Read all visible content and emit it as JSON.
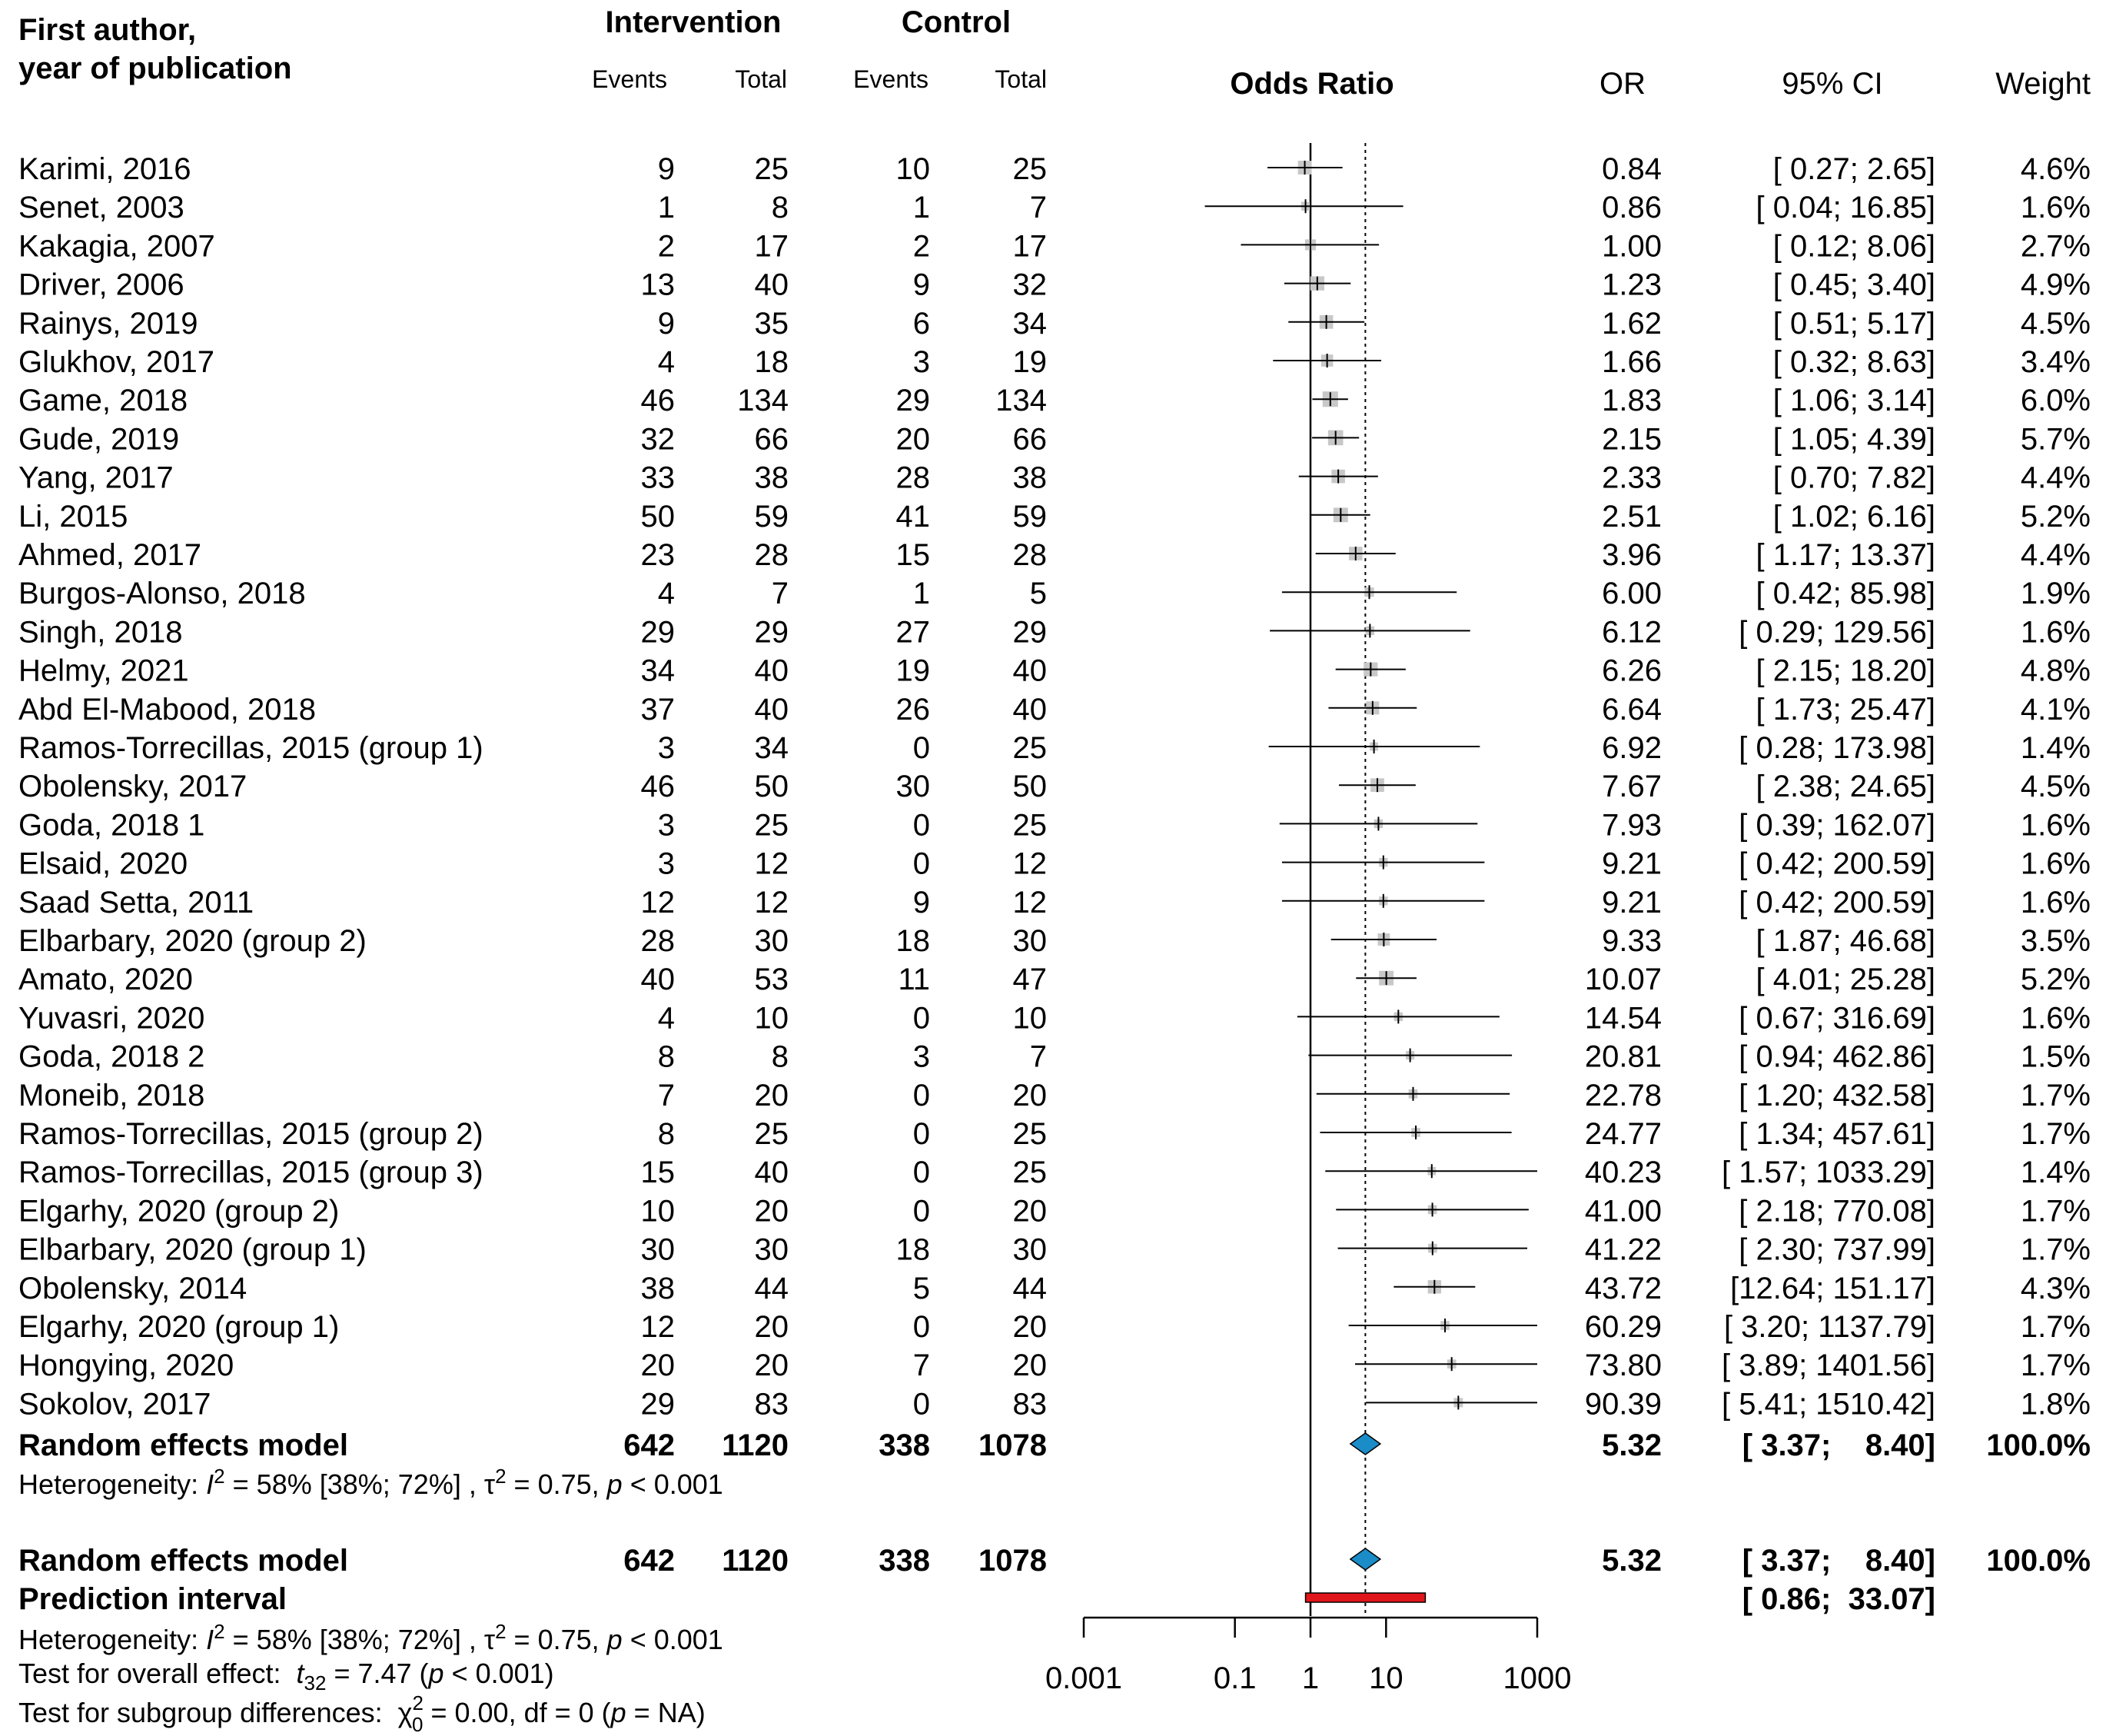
{
  "chart_data": {
    "type": "forest",
    "title": "Odds Ratio",
    "headers": {
      "study": [
        "First author,",
        "year of publication"
      ],
      "intervention": "Intervention",
      "control": "Control",
      "events": "Events",
      "total": "Total",
      "or": "OR",
      "ci": "95% CI",
      "weight": "Weight"
    },
    "x_scale": "log10",
    "xlim": [
      0.001,
      1000
    ],
    "ticks": [
      {
        "value": 0.001,
        "label": "0.001"
      },
      {
        "value": 0.1,
        "label": "0.1"
      },
      {
        "value": 1,
        "label": "1"
      },
      {
        "value": 10,
        "label": "10"
      },
      {
        "value": 1000,
        "label": "1000"
      }
    ],
    "null_line": 1,
    "studies": [
      {
        "name": "Karimi, 2016",
        "e1": "9",
        "n1": "25",
        "e2": "10",
        "n2": "25",
        "or": 0.84,
        "lo": 0.27,
        "hi": 2.65,
        "or_text": "0.84",
        "ci_text": "[ 0.27;    2.65]",
        "w_text": "4.6%",
        "w": 4.6
      },
      {
        "name": "Senet, 2003",
        "e1": "1",
        "n1": "8",
        "e2": "1",
        "n2": "7",
        "or": 0.86,
        "lo": 0.04,
        "hi": 16.85,
        "or_text": "0.86",
        "ci_text": "[ 0.04;   16.85]",
        "w_text": "1.6%",
        "w": 1.6
      },
      {
        "name": "Kakagia, 2007",
        "e1": "2",
        "n1": "17",
        "e2": "2",
        "n2": "17",
        "or": 1.0,
        "lo": 0.12,
        "hi": 8.06,
        "or_text": "1.00",
        "ci_text": "[ 0.12;    8.06]",
        "w_text": "2.7%",
        "w": 2.7
      },
      {
        "name": "Driver, 2006",
        "e1": "13",
        "n1": "40",
        "e2": "9",
        "n2": "32",
        "or": 1.23,
        "lo": 0.45,
        "hi": 3.4,
        "or_text": "1.23",
        "ci_text": "[ 0.45;    3.40]",
        "w_text": "4.9%",
        "w": 4.9
      },
      {
        "name": "Rainys, 2019",
        "e1": "9",
        "n1": "35",
        "e2": "6",
        "n2": "34",
        "or": 1.62,
        "lo": 0.51,
        "hi": 5.17,
        "or_text": "1.62",
        "ci_text": "[ 0.51;    5.17]",
        "w_text": "4.5%",
        "w": 4.5
      },
      {
        "name": "Glukhov, 2017",
        "e1": "4",
        "n1": "18",
        "e2": "3",
        "n2": "19",
        "or": 1.66,
        "lo": 0.32,
        "hi": 8.63,
        "or_text": "1.66",
        "ci_text": "[ 0.32;    8.63]",
        "w_text": "3.4%",
        "w": 3.4
      },
      {
        "name": "Game, 2018",
        "e1": "46",
        "n1": "134",
        "e2": "29",
        "n2": "134",
        "or": 1.83,
        "lo": 1.06,
        "hi": 3.14,
        "or_text": "1.83",
        "ci_text": "[ 1.06;    3.14]",
        "w_text": "6.0%",
        "w": 6.0
      },
      {
        "name": "Gude, 2019",
        "e1": "32",
        "n1": "66",
        "e2": "20",
        "n2": "66",
        "or": 2.15,
        "lo": 1.05,
        "hi": 4.39,
        "or_text": "2.15",
        "ci_text": "[ 1.05;    4.39]",
        "w_text": "5.7%",
        "w": 5.7
      },
      {
        "name": "Yang, 2017",
        "e1": "33",
        "n1": "38",
        "e2": "28",
        "n2": "38",
        "or": 2.33,
        "lo": 0.7,
        "hi": 7.82,
        "or_text": "2.33",
        "ci_text": "[ 0.70;    7.82]",
        "w_text": "4.4%",
        "w": 4.4
      },
      {
        "name": "Li, 2015",
        "e1": "50",
        "n1": "59",
        "e2": "41",
        "n2": "59",
        "or": 2.51,
        "lo": 1.02,
        "hi": 6.16,
        "or_text": "2.51",
        "ci_text": "[ 1.02;    6.16]",
        "w_text": "5.2%",
        "w": 5.2
      },
      {
        "name": "Ahmed, 2017",
        "e1": "23",
        "n1": "28",
        "e2": "15",
        "n2": "28",
        "or": 3.96,
        "lo": 1.17,
        "hi": 13.37,
        "or_text": "3.96",
        "ci_text": "[ 1.17;   13.37]",
        "w_text": "4.4%",
        "w": 4.4
      },
      {
        "name": "Burgos-Alonso, 2018",
        "e1": "4",
        "n1": "7",
        "e2": "1",
        "n2": "5",
        "or": 6.0,
        "lo": 0.42,
        "hi": 85.98,
        "or_text": "6.00",
        "ci_text": "[ 0.42;   85.98]",
        "w_text": "1.9%",
        "w": 1.9
      },
      {
        "name": "Singh, 2018",
        "e1": "29",
        "n1": "29",
        "e2": "27",
        "n2": "29",
        "or": 6.12,
        "lo": 0.29,
        "hi": 129.56,
        "or_text": "6.12",
        "ci_text": "[ 0.29;  129.56]",
        "w_text": "1.6%",
        "w": 1.6
      },
      {
        "name": "Helmy, 2021",
        "e1": "34",
        "n1": "40",
        "e2": "19",
        "n2": "40",
        "or": 6.26,
        "lo": 2.15,
        "hi": 18.2,
        "or_text": "6.26",
        "ci_text": "[ 2.15;   18.20]",
        "w_text": "4.8%",
        "w": 4.8
      },
      {
        "name": "Abd El-Mabood, 2018",
        "e1": "37",
        "n1": "40",
        "e2": "26",
        "n2": "40",
        "or": 6.64,
        "lo": 1.73,
        "hi": 25.47,
        "or_text": "6.64",
        "ci_text": "[ 1.73;   25.47]",
        "w_text": "4.1%",
        "w": 4.1
      },
      {
        "name": "Ramos-Torrecillas, 2015 (group 1)",
        "e1": "3",
        "n1": "34",
        "e2": "0",
        "n2": "25",
        "or": 6.92,
        "lo": 0.28,
        "hi": 173.98,
        "or_text": "6.92",
        "ci_text": "[ 0.28;  173.98]",
        "w_text": "1.4%",
        "w": 1.4
      },
      {
        "name": "Obolensky, 2017",
        "e1": "46",
        "n1": "50",
        "e2": "30",
        "n2": "50",
        "or": 7.67,
        "lo": 2.38,
        "hi": 24.65,
        "or_text": "7.67",
        "ci_text": "[ 2.38;   24.65]",
        "w_text": "4.5%",
        "w": 4.5
      },
      {
        "name": "Goda, 2018 1",
        "e1": "3",
        "n1": "25",
        "e2": "0",
        "n2": "25",
        "or": 7.93,
        "lo": 0.39,
        "hi": 162.07,
        "or_text": "7.93",
        "ci_text": "[ 0.39;  162.07]",
        "w_text": "1.6%",
        "w": 1.6
      },
      {
        "name": "Elsaid, 2020",
        "e1": "3",
        "n1": "12",
        "e2": "0",
        "n2": "12",
        "or": 9.21,
        "lo": 0.42,
        "hi": 200.59,
        "or_text": "9.21",
        "ci_text": "[ 0.42;  200.59]",
        "w_text": "1.6%",
        "w": 1.6
      },
      {
        "name": "Saad Setta, 2011",
        "e1": "12",
        "n1": "12",
        "e2": "9",
        "n2": "12",
        "or": 9.21,
        "lo": 0.42,
        "hi": 200.59,
        "or_text": "9.21",
        "ci_text": "[ 0.42;  200.59]",
        "w_text": "1.6%",
        "w": 1.6
      },
      {
        "name": "Elbarbary, 2020 (group 2)",
        "e1": "28",
        "n1": "30",
        "e2": "18",
        "n2": "30",
        "or": 9.33,
        "lo": 1.87,
        "hi": 46.68,
        "or_text": "9.33",
        "ci_text": "[ 1.87;   46.68]",
        "w_text": "3.5%",
        "w": 3.5
      },
      {
        "name": "Amato, 2020",
        "e1": "40",
        "n1": "53",
        "e2": "11",
        "n2": "47",
        "or": 10.07,
        "lo": 4.01,
        "hi": 25.28,
        "or_text": "10.07",
        "ci_text": "[ 4.01;   25.28]",
        "w_text": "5.2%",
        "w": 5.2
      },
      {
        "name": "Yuvasri, 2020",
        "e1": "4",
        "n1": "10",
        "e2": "0",
        "n2": "10",
        "or": 14.54,
        "lo": 0.67,
        "hi": 316.69,
        "or_text": "14.54",
        "ci_text": "[ 0.67;  316.69]",
        "w_text": "1.6%",
        "w": 1.6
      },
      {
        "name": "Goda, 2018 2",
        "e1": "8",
        "n1": "8",
        "e2": "3",
        "n2": "7",
        "or": 20.81,
        "lo": 0.94,
        "hi": 462.86,
        "or_text": "20.81",
        "ci_text": "[ 0.94;  462.86]",
        "w_text": "1.5%",
        "w": 1.5
      },
      {
        "name": "Moneib, 2018",
        "e1": "7",
        "n1": "20",
        "e2": "0",
        "n2": "20",
        "or": 22.78,
        "lo": 1.2,
        "hi": 432.58,
        "or_text": "22.78",
        "ci_text": "[ 1.20;  432.58]",
        "w_text": "1.7%",
        "w": 1.7
      },
      {
        "name": "Ramos-Torrecillas, 2015 (group 2)",
        "e1": "8",
        "n1": "25",
        "e2": "0",
        "n2": "25",
        "or": 24.77,
        "lo": 1.34,
        "hi": 457.61,
        "or_text": "24.77",
        "ci_text": "[ 1.34;  457.61]",
        "w_text": "1.7%",
        "w": 1.7
      },
      {
        "name": "Ramos-Torrecillas, 2015 (group 3)",
        "e1": "15",
        "n1": "40",
        "e2": "0",
        "n2": "25",
        "or": 40.23,
        "lo": 1.57,
        "hi": 1033.29,
        "or_text": "40.23",
        "ci_text": "[ 1.57; 1033.29]",
        "w_text": "1.4%",
        "w": 1.4
      },
      {
        "name": "Elgarhy, 2020 (group 2)",
        "e1": "10",
        "n1": "20",
        "e2": "0",
        "n2": "20",
        "or": 41.0,
        "lo": 2.18,
        "hi": 770.08,
        "or_text": "41.00",
        "ci_text": "[ 2.18;  770.08]",
        "w_text": "1.7%",
        "w": 1.7
      },
      {
        "name": "Elbarbary, 2020 (group 1)",
        "e1": "30",
        "n1": "30",
        "e2": "18",
        "n2": "30",
        "or": 41.22,
        "lo": 2.3,
        "hi": 737.99,
        "or_text": "41.22",
        "ci_text": "[ 2.30;  737.99]",
        "w_text": "1.7%",
        "w": 1.7
      },
      {
        "name": "Obolensky, 2014",
        "e1": "38",
        "n1": "44",
        "e2": "5",
        "n2": "44",
        "or": 43.72,
        "lo": 12.64,
        "hi": 151.17,
        "or_text": "43.72",
        "ci_text": "[12.64;  151.17]",
        "w_text": "4.3%",
        "w": 4.3
      },
      {
        "name": "Elgarhy, 2020 (group 1)",
        "e1": "12",
        "n1": "20",
        "e2": "0",
        "n2": "20",
        "or": 60.29,
        "lo": 3.2,
        "hi": 1137.79,
        "or_text": "60.29",
        "ci_text": "[ 3.20; 1137.79]",
        "w_text": "1.7%",
        "w": 1.7
      },
      {
        "name": "Hongying, 2020",
        "e1": "20",
        "n1": "20",
        "e2": "7",
        "n2": "20",
        "or": 73.8,
        "lo": 3.89,
        "hi": 1401.56,
        "or_text": "73.80",
        "ci_text": "[ 3.89; 1401.56]",
        "w_text": "1.7%",
        "w": 1.7
      },
      {
        "name": "Sokolov, 2017",
        "e1": "29",
        "n1": "83",
        "e2": "0",
        "n2": "83",
        "or": 90.39,
        "lo": 5.41,
        "hi": 1510.42,
        "or_text": "90.39",
        "ci_text": "[ 5.41; 1510.42]",
        "w_text": "1.8%",
        "w": 1.8
      }
    ],
    "pooled": {
      "label": "Random effects model",
      "e1": "642",
      "n1": "1120",
      "e2": "338",
      "n2": "1078",
      "or": 5.32,
      "lo": 3.37,
      "hi": 8.4,
      "or_text": "5.32",
      "ci_text": "[ 3.37;    8.40]",
      "w_text": "100.0%"
    },
    "prediction": {
      "label": "Prediction interval",
      "lo": 0.86,
      "hi": 33.07,
      "ci_text": "[ 0.86;  33.07]"
    },
    "heterogeneity": {
      "prefix": "Heterogeneity: ",
      "i2_symbol": "I",
      "i2_sup": "2",
      "i2_value": " = 58% [38%; 72%] , ",
      "tau_symbol": "τ",
      "tau_sup": "2",
      "tau_value": " = 0.75, ",
      "p_symbol": "p",
      "p_value": " < 0.001"
    },
    "overall_effect": {
      "prefix": "Test for overall effect:  ",
      "stat_symbol": "t",
      "stat_sub": "32",
      "stat_value": " = 7.47 (",
      "p_symbol": "p",
      "p_value": " < 0.001)"
    },
    "subgroup": {
      "prefix": "Test for subgroup differences:  ",
      "chi_symbol": "χ",
      "chi_sup": "2",
      "chi_sub": "0",
      "chi_value": " = 0.00, df = 0 (",
      "p_symbol": "p",
      "p_value": " = NA)"
    },
    "colors": {
      "square": "#c8c8c8",
      "diamond": "#1a8cc8",
      "prediction": "#e0151b",
      "line": "#000000"
    }
  }
}
